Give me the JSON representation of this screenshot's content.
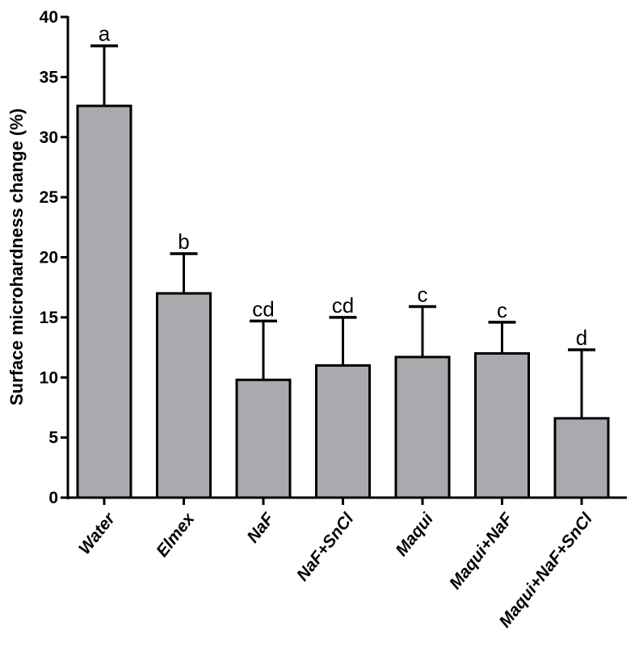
{
  "chart_data": {
    "type": "bar",
    "title": "",
    "xlabel": "",
    "ylabel": "Surface microhardness change (%)",
    "ylim": [
      0,
      40
    ],
    "yticks": [
      0,
      5,
      10,
      15,
      20,
      25,
      30,
      35,
      40
    ],
    "grid": false,
    "categories": [
      "Water",
      "Elmex",
      "NaF",
      "NaF+SnCl",
      "Maqui",
      "Maqui+NaF",
      "Maqui+NaF+SnCl"
    ],
    "values": [
      32.6,
      17.0,
      9.8,
      11.0,
      11.7,
      12.0,
      6.6
    ],
    "error_upper": [
      37.6,
      20.3,
      14.7,
      15.0,
      15.9,
      14.6,
      12.3
    ],
    "significance_labels": [
      "a",
      "b",
      "cd",
      "cd",
      "c",
      "c",
      "d"
    ],
    "bar_color": "#a9a9ae"
  }
}
